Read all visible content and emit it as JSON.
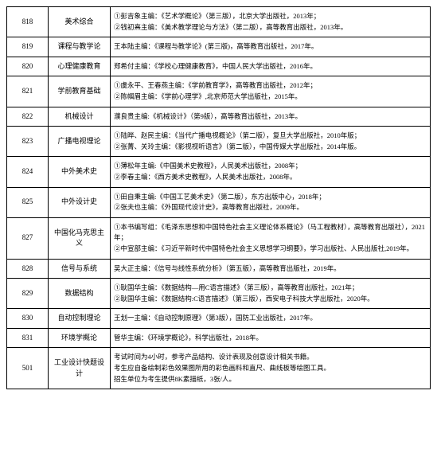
{
  "rows": [
    {
      "code": "818",
      "subject": "美术综合",
      "refs": [
        "①彭吉象主编：《艺术学概论》（第三版），北京大学出版社，2013年；",
        "②钱初熹主编：《美术教学理论与方法》（第二版），高等教育出版社，2013年。"
      ]
    },
    {
      "code": "819",
      "subject": "课程与教学论",
      "refs": [
        "王本陆主编：《课程与教学论》(第三版)，高等教育出版社，2017年。"
      ]
    },
    {
      "code": "820",
      "subject": "心理健康教育",
      "refs": [
        "郑希付主编：《学校心理健康教育》，中国人民大学出版社，2016年。"
      ]
    },
    {
      "code": "821",
      "subject": "学前教育基础",
      "refs": [
        "①虞永平、王春燕主编：《学前教育学》，高等教育出版社，2012年；",
        "②陈帼眉主编：《学前心理学》,北京师范大学出版社，2015年。"
      ]
    },
    {
      "code": "822",
      "subject": "机械设计",
      "refs": [
        "濮良贵主编:《机械设计》（第9版），高等教育出版社，2013年。"
      ]
    },
    {
      "code": "823",
      "subject": "广播电视理论",
      "refs": [
        "①陆晔、赵民主编：《当代广播电视概论》（第二版），复旦大学出版社，2010年版；",
        "②张菁、关玲主编：《影视视听语言》（第二版），中国传媒大学出版社，2014年版。"
      ]
    },
    {
      "code": "824",
      "subject": "中外美术史",
      "refs": [
        "①薄松年主编:《中国美术史教程》，人民美术出版社，2008年；",
        "②李春主编：《西方美术史教程》，人民美术出版社，2008年。"
      ]
    },
    {
      "code": "825",
      "subject": "中外设计史",
      "refs": [
        "①田自秉主编:《中国工艺美术史》（第二版），东方出版中心，2018年；",
        "②张夫也主编：《外国现代设计史》，高等教育出版社，2009年。"
      ]
    },
    {
      "code": "827",
      "subject": "中国化马克思主义",
      "refs": [
        "①本书编写组：《毛泽东思想和中国特色社会主义理论体系概论》（马工程教材），高等教育出版社），2021年；",
        "②中宣部主编：《习近平新时代中国特色社会主义思想学习纲要》，学习出版社、人民出版社,2019年。"
      ]
    },
    {
      "code": "828",
      "subject": "信号与系统",
      "refs": [
        "吴大正主编：《信号与线性系统分析》（第五版），高等教育出版社，2019年。"
      ]
    },
    {
      "code": "829",
      "subject": "数据结构",
      "refs": [
        "①耿国华主编：《数据结构—用C语言描述》（第三版），高等教育出版社，2021年；",
        "②耿国华主编：《数据结构:C语言描述》（第三版），西安电子科技大学出版社，2020年。"
      ]
    },
    {
      "code": "830",
      "subject": "自动控制理论",
      "refs": [
        "王划一主编：《自动控制原理》（第3版），国防工业出版社，2017年。"
      ]
    },
    {
      "code": "831",
      "subject": "环境学概论",
      "refs": [
        "管华主编：《环境学概论》，科学出版社，2018年。"
      ]
    },
    {
      "code": "501",
      "subject": "工业设计快题设计",
      "refs": [
        "考试时间为4小时，参考产品结构、设计表现及创意设计相关书籍。",
        "考生应自备绘制彩色效果图所用的彩色画料和直尺、曲线板等绘图工具。",
        "招生单位为考生提供8K素描纸，3张/人。"
      ]
    }
  ]
}
